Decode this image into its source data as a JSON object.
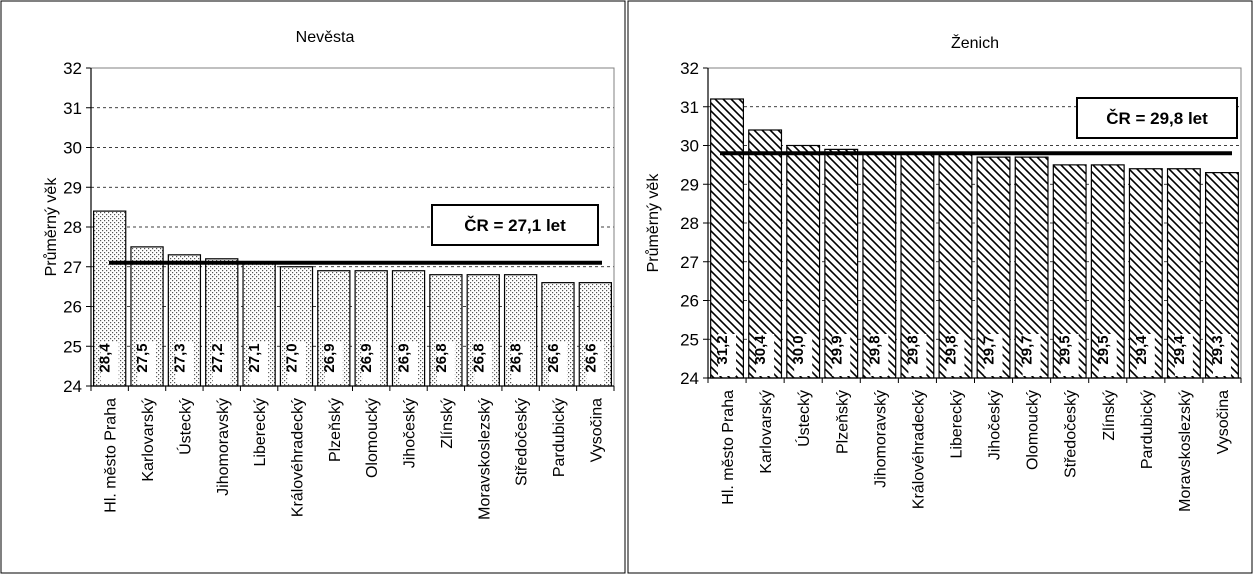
{
  "chart_data": [
    {
      "type": "bar",
      "title": "Nevěsta",
      "ylabel": "Průměrný věk",
      "ylim": [
        24,
        32
      ],
      "yticks": [
        "24",
        "25",
        "26",
        "27",
        "28",
        "29",
        "30",
        "31",
        "32"
      ],
      "grid": true,
      "bar_fill": "dotted",
      "categories": [
        "Hl. město Praha",
        "Karlovarský",
        "Ústecký",
        "Jihomoravský",
        "Liberecký",
        "Královéhradecký",
        "Plzeňský",
        "Olomoucký",
        "Jihočeský",
        "Zlínský",
        "Moravskoslezský",
        "Středočeský",
        "Pardubický",
        "Vysočina"
      ],
      "values": [
        28.4,
        27.5,
        27.3,
        27.2,
        27.1,
        27.0,
        26.9,
        26.9,
        26.9,
        26.8,
        26.8,
        26.8,
        26.6,
        26.6
      ],
      "value_labels": [
        "28,4",
        "27,5",
        "27,3",
        "27,2",
        "27,1",
        "27,0",
        "26,9",
        "26,9",
        "26,9",
        "26,8",
        "26,8",
        "26,8",
        "26,6",
        "26,6"
      ],
      "reference_line": {
        "value": 27.1,
        "label": "ČR = 27,1 let"
      }
    },
    {
      "type": "bar",
      "title": "Ženich",
      "ylabel": "Průměrný věk",
      "ylim": [
        24,
        32
      ],
      "yticks": [
        "24",
        "25",
        "26",
        "27",
        "28",
        "29",
        "30",
        "31",
        "32"
      ],
      "grid": true,
      "bar_fill": "hatched",
      "categories": [
        "Hl. město Praha",
        "Karlovarský",
        "Ústecký",
        "Plzeňský",
        "Jihomoravský",
        "Královéhradecký",
        "Liberecký",
        "Jihočeský",
        "Olomoucký",
        "Středočeský",
        "Zlínský",
        "Pardubický",
        "Moravskoslezský",
        "Vysočina"
      ],
      "values": [
        31.2,
        30.4,
        30.0,
        29.9,
        29.8,
        29.8,
        29.8,
        29.7,
        29.7,
        29.5,
        29.5,
        29.4,
        29.4,
        29.3
      ],
      "value_labels": [
        "31,2",
        "30,4",
        "30,0",
        "29,9",
        "29,8",
        "29,8",
        "29,8",
        "29,7",
        "29,7",
        "29,5",
        "29,5",
        "29,4",
        "29,4",
        "29,3"
      ],
      "reference_line": {
        "value": 29.8,
        "label": "ČR = 29,8 let"
      }
    }
  ]
}
